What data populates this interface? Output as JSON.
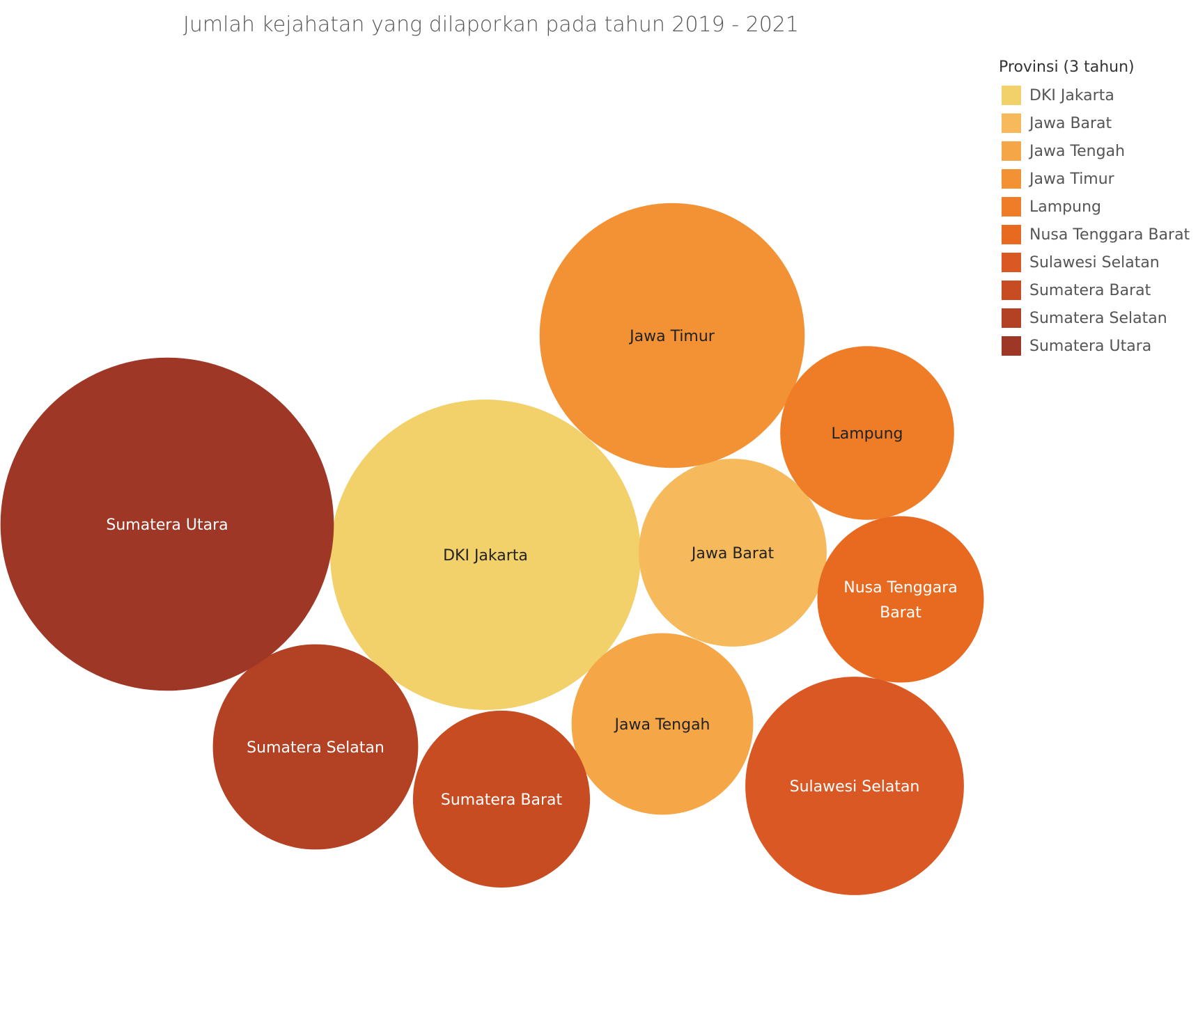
{
  "chart_data": {
    "type": "bubble",
    "title": "Jumlah kejahatan yang dilaporkan pada tahun 2019 - 2021",
    "legend": {
      "title": "Provinsi (3 tahun)",
      "placement": "top-right"
    },
    "series": [
      {
        "name": "DKI Jakarta",
        "color": "#F2D06A",
        "label_color": "#222222",
        "value": 100,
        "label_lines": [
          "DKI Jakarta"
        ]
      },
      {
        "name": "Jawa Barat",
        "color": "#F6BA5C",
        "label_color": "#222222",
        "value": 36.6,
        "label_lines": [
          "Jawa Barat"
        ]
      },
      {
        "name": "Jawa Tengah",
        "color": "#F5A646",
        "label_color": "#222222",
        "value": 34.2,
        "label_lines": [
          "Jawa Tengah"
        ]
      },
      {
        "name": "Jawa Timur",
        "color": "#F29235",
        "label_color": "#222222",
        "value": 72.8,
        "label_lines": [
          "Jawa Timur"
        ]
      },
      {
        "name": "Lampung",
        "color": "#EF7C27",
        "label_color": "#222222",
        "value": 31.3,
        "label_lines": [
          "Lampung"
        ]
      },
      {
        "name": "Nusa Tenggara Barat",
        "color": "#E86A20",
        "label_color": "#ffffff",
        "value": 28.7,
        "label_lines": [
          "Nusa Tenggara",
          "Barat"
        ]
      },
      {
        "name": "Sulawesi Selatan",
        "color": "#DA5823",
        "label_color": "#ffffff",
        "value": 49.5,
        "label_lines": [
          "Sulawesi Selatan"
        ]
      },
      {
        "name": "Sumatera Barat",
        "color": "#C84C22",
        "label_color": "#ffffff",
        "value": 32.5,
        "label_lines": [
          "Sumatera Barat"
        ]
      },
      {
        "name": "Sumatera Selatan",
        "color": "#B34123",
        "label_color": "#ffffff",
        "value": 43.7,
        "label_lines": [
          "Sumatera Selatan"
        ]
      },
      {
        "name": "Sumatera Utara",
        "color": "#9E3725",
        "label_color": "#ffffff",
        "value": 115.2,
        "label_lines": [
          "Sumatera Utara"
        ]
      }
    ]
  }
}
